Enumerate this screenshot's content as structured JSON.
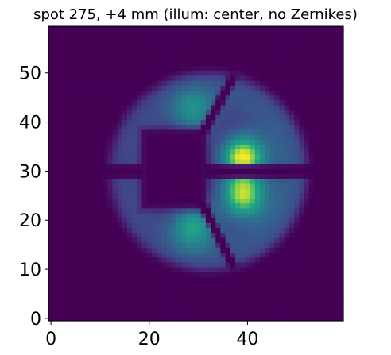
{
  "chart_data": {
    "type": "heatmap",
    "title": "spot 275, +4 mm (illum: center, no Zernikes)",
    "xlabel": "",
    "ylabel": "",
    "xlim": [
      -0.5,
      59.5
    ],
    "ylim": [
      -0.5,
      59.5
    ],
    "origin": "lower",
    "colormap": "viridis",
    "value_range": [
      0,
      1
    ],
    "x_ticks": [
      0,
      20,
      40
    ],
    "y_ticks": [
      0,
      10,
      20,
      30,
      40,
      50
    ],
    "image_size": [
      60,
      60
    ],
    "pupil": {
      "shape": "circle",
      "center": [
        32,
        30
      ],
      "radius": 21.5,
      "central_obscuration": {
        "x_range": [
          19,
          31
        ],
        "y_range": [
          23,
          38
        ]
      },
      "horizontal_spider": {
        "y": 30,
        "half_width": 1
      },
      "diagonal_spiders": [
        {
          "from": [
            31,
            38
          ],
          "to": [
            37,
            49
          ]
        },
        {
          "from": [
            31,
            23
          ],
          "to": [
            37,
            11
          ]
        }
      ]
    },
    "bright_regions": [
      {
        "x": 39,
        "y": 33,
        "peak": 1.0
      },
      {
        "x": 39,
        "y": 25,
        "peak": 0.9
      },
      {
        "x": 29,
        "y": 19,
        "peak": 0.7
      },
      {
        "x": 29,
        "y": 42,
        "peak": 0.55
      }
    ]
  }
}
